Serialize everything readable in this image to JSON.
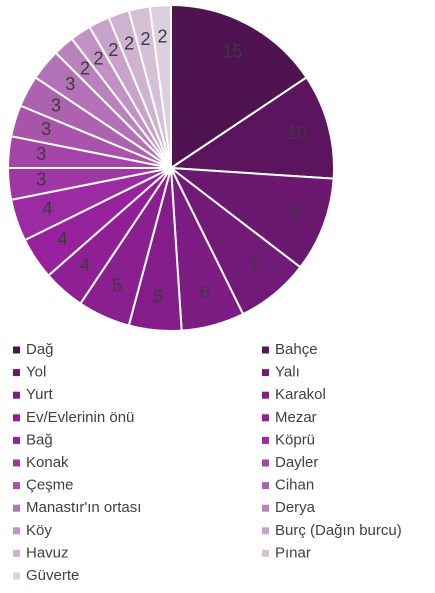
{
  "chart_data": {
    "type": "pie",
    "categories": [
      "Dağ",
      "Bahçe",
      "Yol",
      "Yalı",
      "Yurt",
      "Karakol",
      "Ev/Evlerinin önü",
      "Mezar",
      "Bağ",
      "Köprü",
      "Konak",
      "Dayler",
      "Çeşme",
      "Cihan",
      "Manastır'ın ortası",
      "Derya",
      "Köy",
      "Burç (Dağın burcu)",
      "Havuz",
      "Pınar",
      "Güverte"
    ],
    "values": [
      15,
      10,
      9,
      7,
      6,
      5,
      5,
      4,
      4,
      4,
      3,
      3,
      3,
      3,
      3,
      2,
      2,
      2,
      2,
      2,
      2
    ],
    "colors": [
      "#4f1352",
      "#5c145f",
      "#6a1870",
      "#721a78",
      "#7d1c82",
      "#841d8a",
      "#8a1f90",
      "#901f96",
      "#98229e",
      "#9c2aa2",
      "#a035a4",
      "#a444a8",
      "#a854ab",
      "#ad62b0",
      "#b372b5",
      "#ba82bc",
      "#c192c3",
      "#c8a2c9",
      "#cfb1d0",
      "#d6c0d6",
      "#ddcfdd"
    ],
    "legend": "bottom"
  }
}
